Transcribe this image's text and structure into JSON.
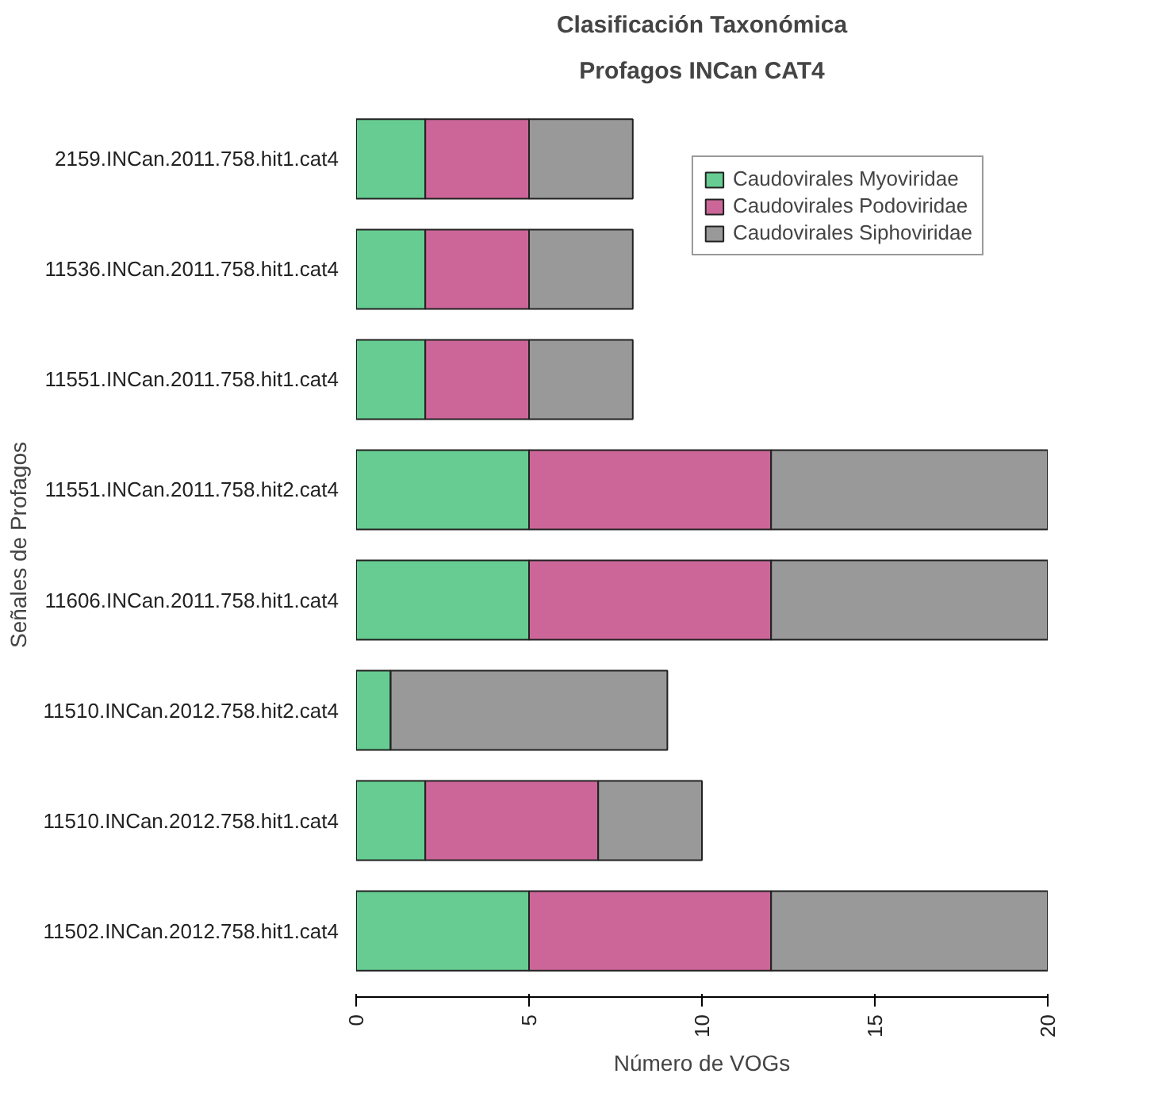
{
  "chart_data": {
    "type": "bar",
    "orientation": "horizontal",
    "stacked": true,
    "title": "Clasificación Taxonómica",
    "subtitle": "Profagos INCan CAT4",
    "xlabel": "Número de VOGs",
    "ylabel": "Señales de Profagos",
    "categories": [
      "2159.INCan.2011.758.hit1.cat4",
      "11536.INCan.2011.758.hit1.cat4",
      "11551.INCan.2011.758.hit1.cat4",
      "11551.INCan.2011.758.hit2.cat4",
      "11606.INCan.2011.758.hit1.cat4",
      "11510.INCan.2012.758.hit2.cat4",
      "11510.INCan.2012.758.hit1.cat4",
      "11502.INCan.2012.758.hit1.cat4"
    ],
    "series": [
      {
        "name": "Caudovirales Myoviridae",
        "color": "#66cc91",
        "values": [
          2,
          2,
          2,
          5,
          5,
          1,
          2,
          5
        ]
      },
      {
        "name": "Caudovirales Podoviridae",
        "color": "#cc6699",
        "values": [
          3,
          3,
          3,
          7,
          7,
          0,
          5,
          7
        ]
      },
      {
        "name": "Caudovirales Siphoviridae",
        "color": "#999999",
        "values": [
          3,
          3,
          3,
          8,
          8,
          8,
          3,
          8
        ]
      }
    ],
    "xlim": [
      0,
      20
    ],
    "xticks": [
      0,
      5,
      10,
      15,
      20
    ],
    "grid": false,
    "legend": "top right"
  }
}
